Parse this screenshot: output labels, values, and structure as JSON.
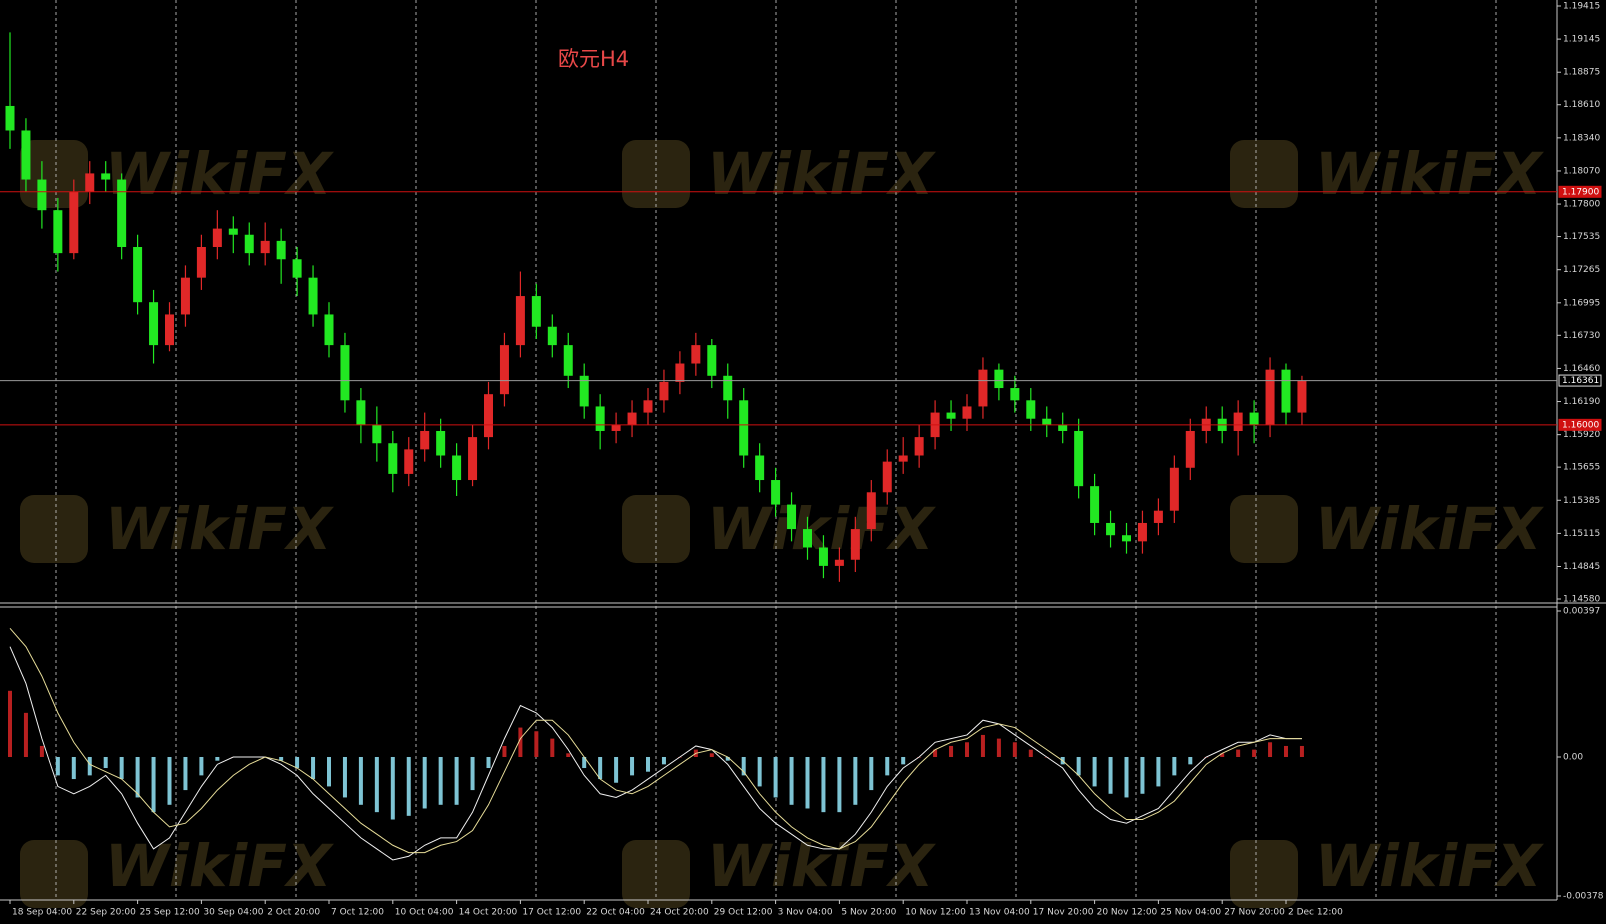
{
  "chart_data": [
    {
      "type": "candlestick",
      "title": "欧元H4",
      "categories": [
        "18 Sep 04:00",
        null,
        null,
        null,
        "22 Sep 20:00",
        null,
        null,
        null,
        "25 Sep 12:00",
        null,
        null,
        null,
        "30 Sep 04:00",
        null,
        null,
        null,
        "2 Oct 20:00",
        null,
        null,
        null,
        "7 Oct 12:00",
        null,
        null,
        null,
        "10 Oct 04:00",
        null,
        null,
        null,
        "14 Oct 20:00",
        null,
        null,
        null,
        "17 Oct 12:00",
        null,
        null,
        null,
        "22 Oct 04:00",
        null,
        null,
        null,
        "24 Oct 20:00",
        null,
        null,
        null,
        "29 Oct 12:00",
        null,
        null,
        null,
        "3 Nov 04:00",
        null,
        null,
        null,
        "5 Nov 20:00",
        null,
        null,
        null,
        "10 Nov 12:00",
        null,
        null,
        null,
        "13 Nov 04:00",
        null,
        null,
        null,
        "17 Nov 20:00",
        null,
        null,
        null,
        "20 Nov 12:00",
        null,
        null,
        null,
        "25 Nov 04:00",
        null,
        null,
        null,
        "27 Nov 20:00",
        null,
        null,
        null,
        "2 Dec 12:00",
        null
      ],
      "open": [
        1.186,
        1.184,
        1.18,
        1.1775,
        1.174,
        1.179,
        1.1805,
        1.18,
        1.1745,
        1.17,
        1.1665,
        1.169,
        1.172,
        1.1745,
        1.176,
        1.1755,
        1.174,
        1.175,
        1.1735,
        1.172,
        1.169,
        1.1665,
        1.162,
        1.16,
        1.1585,
        1.156,
        1.158,
        1.1595,
        1.1575,
        1.1555,
        1.159,
        1.1625,
        1.1665,
        1.1705,
        1.168,
        1.1665,
        1.164,
        1.1615,
        1.1595,
        1.16,
        1.161,
        1.162,
        1.1635,
        1.165,
        1.1665,
        1.164,
        1.162,
        1.1575,
        1.1555,
        1.1535,
        1.1515,
        1.15,
        1.1485,
        1.149,
        1.1515,
        1.1545,
        1.157,
        1.1575,
        1.159,
        1.161,
        1.1605,
        1.1615,
        1.1645,
        1.163,
        1.162,
        1.1605,
        1.16,
        1.1595,
        1.155,
        1.152,
        1.151,
        1.1505,
        1.152,
        1.153,
        1.1565,
        1.1595,
        1.1605,
        1.1595,
        1.161,
        1.16,
        1.1645,
        1.161
      ],
      "high": [
        1.192,
        1.185,
        1.1815,
        1.1785,
        1.18,
        1.1815,
        1.1815,
        1.1805,
        1.1755,
        1.171,
        1.17,
        1.173,
        1.1755,
        1.1775,
        1.177,
        1.1765,
        1.1765,
        1.176,
        1.1745,
        1.173,
        1.17,
        1.1675,
        1.163,
        1.1615,
        1.1595,
        1.159,
        1.161,
        1.1605,
        1.1585,
        1.16,
        1.1635,
        1.1675,
        1.1725,
        1.1715,
        1.169,
        1.1675,
        1.165,
        1.1625,
        1.161,
        1.162,
        1.163,
        1.1645,
        1.166,
        1.1675,
        1.167,
        1.165,
        1.163,
        1.1585,
        1.1565,
        1.1545,
        1.1525,
        1.151,
        1.15,
        1.1525,
        1.1555,
        1.158,
        1.159,
        1.16,
        1.162,
        1.162,
        1.1625,
        1.1655,
        1.165,
        1.164,
        1.163,
        1.1615,
        1.161,
        1.1605,
        1.156,
        1.153,
        1.152,
        1.153,
        1.154,
        1.1575,
        1.1605,
        1.1615,
        1.1615,
        1.162,
        1.162,
        1.1655,
        1.165,
        1.164
      ],
      "low": [
        1.1825,
        1.179,
        1.176,
        1.1725,
        1.1735,
        1.178,
        1.179,
        1.1735,
        1.169,
        1.165,
        1.166,
        1.168,
        1.171,
        1.1735,
        1.174,
        1.173,
        1.173,
        1.1715,
        1.1705,
        1.168,
        1.1655,
        1.161,
        1.1585,
        1.157,
        1.1545,
        1.155,
        1.157,
        1.1565,
        1.1542,
        1.155,
        1.158,
        1.1615,
        1.1655,
        1.167,
        1.1655,
        1.163,
        1.1605,
        1.158,
        1.1585,
        1.159,
        1.16,
        1.161,
        1.1625,
        1.164,
        1.163,
        1.1605,
        1.1565,
        1.1545,
        1.1525,
        1.1505,
        1.149,
        1.1475,
        1.1472,
        1.148,
        1.1505,
        1.1535,
        1.156,
        1.1565,
        1.158,
        1.1595,
        1.1595,
        1.1605,
        1.162,
        1.161,
        1.1595,
        1.159,
        1.1585,
        1.154,
        1.151,
        1.15,
        1.1495,
        1.1495,
        1.151,
        1.152,
        1.1555,
        1.1585,
        1.1585,
        1.1575,
        1.1585,
        1.159,
        1.16,
        1.16
      ],
      "close": [
        1.184,
        1.18,
        1.1775,
        1.174,
        1.179,
        1.1805,
        1.18,
        1.1745,
        1.17,
        1.1665,
        1.169,
        1.172,
        1.1745,
        1.176,
        1.1755,
        1.174,
        1.175,
        1.1735,
        1.172,
        1.169,
        1.1665,
        1.162,
        1.16,
        1.1585,
        1.156,
        1.158,
        1.1595,
        1.1575,
        1.1555,
        1.159,
        1.1625,
        1.1665,
        1.1705,
        1.168,
        1.1665,
        1.164,
        1.1615,
        1.1595,
        1.16,
        1.161,
        1.162,
        1.1635,
        1.165,
        1.1665,
        1.164,
        1.162,
        1.1575,
        1.1555,
        1.1535,
        1.1515,
        1.15,
        1.1485,
        1.149,
        1.1515,
        1.1545,
        1.157,
        1.1575,
        1.159,
        1.161,
        1.1605,
        1.1615,
        1.1645,
        1.163,
        1.162,
        1.1605,
        1.16,
        1.1595,
        1.155,
        1.152,
        1.151,
        1.1505,
        1.152,
        1.153,
        1.1565,
        1.1595,
        1.1605,
        1.1595,
        1.161,
        1.16,
        1.1645,
        1.161,
        1.1636
      ],
      "color_up": "#e02828",
      "color_down": "#22e822",
      "ylim": [
        1.1458,
        1.19415
      ],
      "yticks": [
        1.19415,
        1.19145,
        1.18875,
        {
          "value": 1.1861,
          "label": "1.18610"
        },
        {
          "value": 1.1834,
          "label": "1.18340"
        },
        {
          "value": 1.1807,
          "label": "1.18070"
        },
        {
          "value": 1.178,
          "label": "1.17800"
        },
        1.17535,
        1.17265,
        1.16995,
        {
          "value": 1.1673,
          "label": "1.16730"
        },
        {
          "value": 1.1646,
          "label": "1.16460"
        },
        {
          "value": 1.1619,
          "label": "1.16190"
        },
        {
          "value": 1.1592,
          "label": "1.15920"
        },
        1.15655,
        1.15385,
        1.15115,
        1.14845,
        {
          "value": 1.1458,
          "label": "1.14580"
        }
      ],
      "levels": [
        {
          "value": 1.179,
          "label": "1.17900",
          "color": "#d01010"
        },
        {
          "value": 1.16361,
          "label": "1.16361",
          "color": "#9a9a9a"
        },
        {
          "value": 1.16,
          "label": "1.16000",
          "color": "#d01010"
        }
      ]
    },
    {
      "type": "macd",
      "histogram": {
        "values": [
          0.0018,
          0.0012,
          0.0003,
          -0.0005,
          -0.0006,
          -0.0005,
          -0.0003,
          -0.0006,
          -0.0011,
          -0.0015,
          -0.0013,
          -0.0009,
          -0.0005,
          -0.0001,
          0,
          0,
          0,
          -0.0001,
          -0.0003,
          -0.0006,
          -0.0008,
          -0.0011,
          -0.0013,
          -0.0015,
          -0.0017,
          -0.0016,
          -0.0014,
          -0.0013,
          -0.0013,
          -0.0009,
          -0.0003,
          0.0003,
          0.0008,
          0.0007,
          0.0005,
          0.0001,
          -0.0003,
          -0.0006,
          -0.0007,
          -0.0005,
          -0.0004,
          -0.0002,
          0,
          0.0002,
          0.0001,
          -0.0001,
          -0.0005,
          -0.0008,
          -0.0011,
          -0.0013,
          -0.0014,
          -0.0015,
          -0.0015,
          -0.0013,
          -0.0009,
          -0.0005,
          -0.0002,
          0,
          0.0002,
          0.0003,
          0.0004,
          0.0006,
          0.0005,
          0.0004,
          0.0002,
          0,
          -0.0002,
          -0.0005,
          -0.0008,
          -0.001,
          -0.0011,
          -0.001,
          -0.0008,
          -0.0005,
          -0.0002,
          0,
          0.0001,
          0.0002,
          0.0002,
          0.0004,
          0.0003,
          0.0003
        ],
        "color_up": "#b82020",
        "color_down": "#7ec4d4"
      },
      "series": [
        {
          "color": "#f0f0f0",
          "values": [
            0.003,
            0.002,
            0.0005,
            -0.0008,
            -0.001,
            -0.0008,
            -0.0005,
            -0.001,
            -0.0018,
            -0.0025,
            -0.0022,
            -0.0015,
            -0.0008,
            -0.0002,
            0,
            0,
            0,
            -0.0002,
            -0.0005,
            -0.001,
            -0.0014,
            -0.0018,
            -0.0022,
            -0.0025,
            -0.0028,
            -0.0027,
            -0.0024,
            -0.0022,
            -0.0022,
            -0.0015,
            -0.0005,
            0.0005,
            0.0014,
            0.0012,
            0.0008,
            0.0002,
            -0.0005,
            -0.001,
            -0.0011,
            -0.0009,
            -0.0006,
            -0.0003,
            0,
            0.0003,
            0.0002,
            -0.0002,
            -0.0008,
            -0.0014,
            -0.0018,
            -0.0021,
            -0.0024,
            -0.0025,
            -0.0025,
            -0.0021,
            -0.0015,
            -0.0008,
            -0.0003,
            0,
            0.0004,
            0.0005,
            0.0006,
            0.001,
            0.0009,
            0.0006,
            0.0003,
            0,
            -0.0003,
            -0.0009,
            -0.0014,
            -0.0017,
            -0.0018,
            -0.0016,
            -0.0014,
            -0.0009,
            -0.0004,
            0,
            0.0002,
            0.0004,
            0.0004,
            0.0006,
            0.0005,
            0.0005
          ]
        },
        {
          "color": "#e6dc98",
          "values": [
            0.0035,
            0.003,
            0.0022,
            0.0012,
            0.0004,
            -0.0002,
            -0.0004,
            -0.0006,
            -0.001,
            -0.0015,
            -0.0019,
            -0.0018,
            -0.0014,
            -0.0009,
            -0.0005,
            -0.0002,
            0,
            -0.0001,
            -0.0003,
            -0.0006,
            -0.001,
            -0.0014,
            -0.0018,
            -0.0021,
            -0.0024,
            -0.0026,
            -0.0026,
            -0.0024,
            -0.0023,
            -0.002,
            -0.0013,
            -0.0004,
            0.0005,
            0.001,
            0.001,
            0.0006,
            0,
            -0.0006,
            -0.0009,
            -0.001,
            -0.0008,
            -0.0005,
            -0.0002,
            0.0001,
            0.0002,
            0,
            -0.0004,
            -0.001,
            -0.0015,
            -0.0019,
            -0.0022,
            -0.0024,
            -0.0025,
            -0.0023,
            -0.0019,
            -0.0013,
            -0.0007,
            -0.0002,
            0.0002,
            0.0004,
            0.0005,
            0.0008,
            0.0009,
            0.0008,
            0.0005,
            0.0002,
            -0.0001,
            -0.0005,
            -0.001,
            -0.0014,
            -0.0017,
            -0.0017,
            -0.0015,
            -0.0012,
            -0.0007,
            -0.0002,
            0.0001,
            0.0003,
            0.0004,
            0.0005,
            0.0005,
            0.0005
          ]
        }
      ],
      "ylim": [
        -0.00378,
        0.00397
      ],
      "yticks": [
        0.00397,
        {
          "value": 0,
          "label": "0.00"
        },
        -0.00378
      ]
    }
  ],
  "watermark": "WikiFX"
}
